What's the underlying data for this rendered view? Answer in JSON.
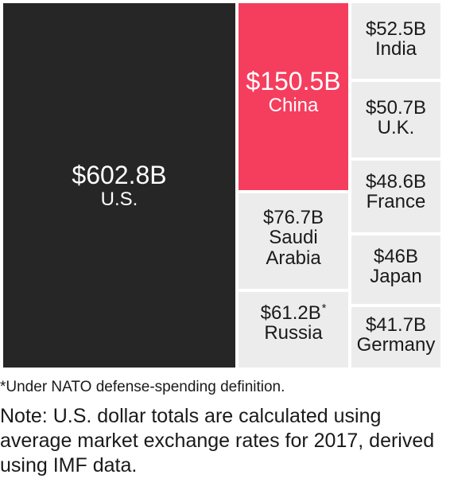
{
  "chart_data": {
    "type": "treemap",
    "unit": "$B",
    "items": [
      {
        "country": "U.S.",
        "value": 602.8,
        "value_label": "$602.8B",
        "color": "#262626"
      },
      {
        "country": "China",
        "value": 150.5,
        "value_label": "$150.5B",
        "color": "#f53d5e"
      },
      {
        "country": "Saudi Arabia",
        "value": 76.7,
        "value_label": "$76.7B",
        "color": "#ececec"
      },
      {
        "country": "Russia",
        "value": 61.2,
        "value_label": "$61.2B",
        "footnote_marker": "*",
        "color": "#ececec"
      },
      {
        "country": "India",
        "value": 52.5,
        "value_label": "$52.5B",
        "color": "#ececec"
      },
      {
        "country": "U.K.",
        "value": 50.7,
        "value_label": "$50.7B",
        "color": "#ececec"
      },
      {
        "country": "France",
        "value": 48.6,
        "value_label": "$48.6B",
        "color": "#ececec"
      },
      {
        "country": "Japan",
        "value": 46,
        "value_label": "$46B",
        "color": "#ececec"
      },
      {
        "country": "Germany",
        "value": 41.7,
        "value_label": "$41.7B",
        "color": "#ececec"
      }
    ]
  },
  "footnote": "*Under NATO defense-spending definition.",
  "note": "Note: U.S. dollar totals are calculated using average market exchange rates for 2017, derived using IMF data."
}
